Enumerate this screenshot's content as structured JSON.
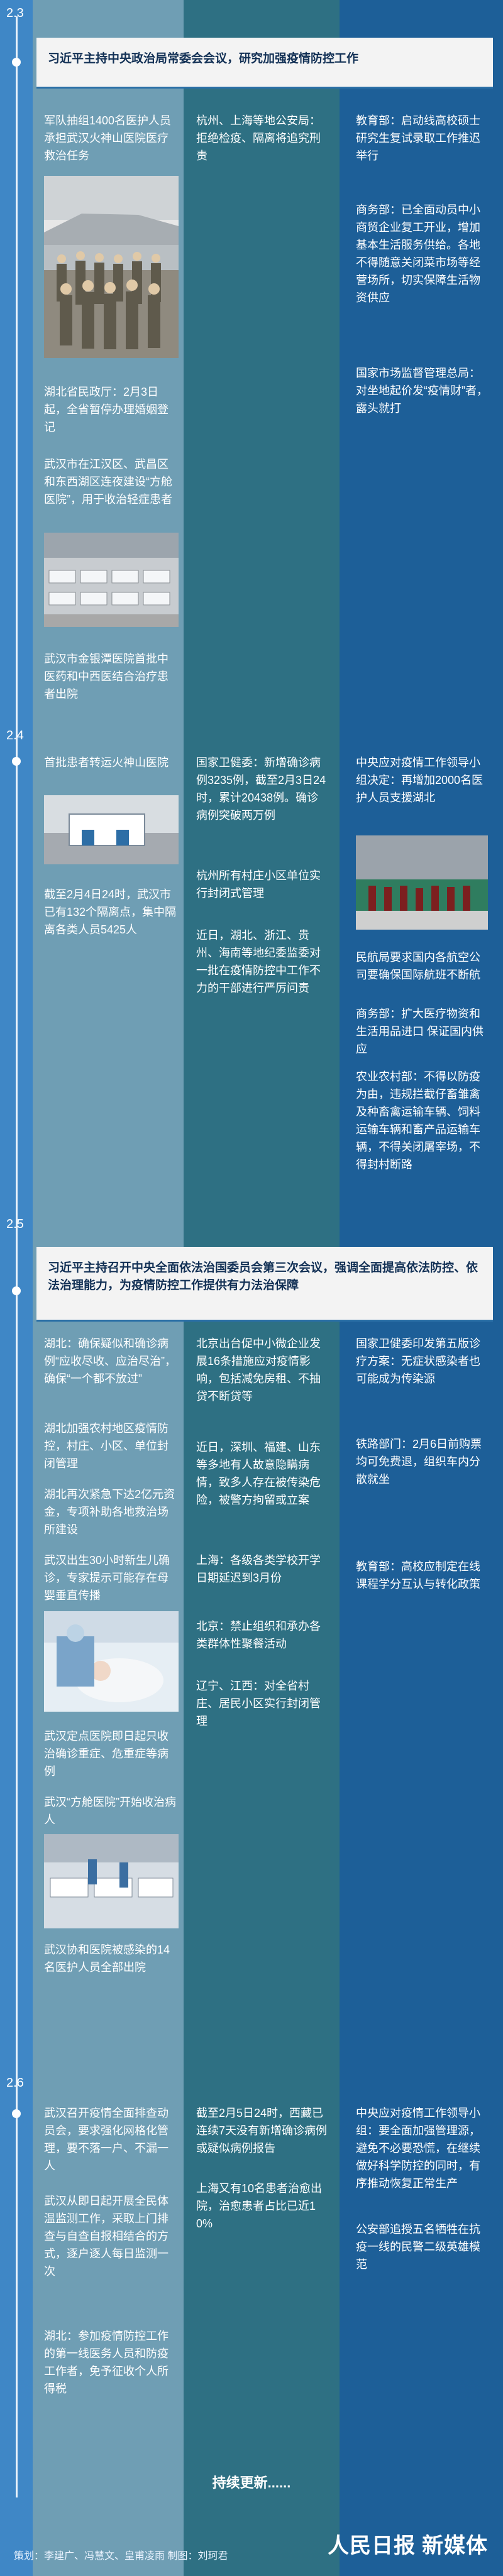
{
  "meta": {
    "colors": {
      "left_strip": "#3f87c6",
      "col1_bg": "#6f9eb4",
      "col2_bg": "#2e7083",
      "col3_bg": "#1d5f98",
      "banner_bg": "#f3f3f3",
      "banner_text": "#123055"
    }
  },
  "timeline": {
    "dates": [
      "2.3",
      "2.4",
      "2.5",
      "2.6"
    ]
  },
  "meetings": [
    {
      "text": "习近平主持中央政治局常委会会议，研究加强疫情防控工作"
    },
    {
      "text": "习近平主持召开中央全面依法治国委员会第三次会议，强调全面提高依法防控、依法治理能力，为疫情防控工作提供有力法治保障"
    }
  ],
  "sections": {
    "d23": {
      "col1": [
        "军队抽组1400名医护人员承担武汉火神山医院医疗救治任务",
        "湖北省民政厅：2月3日起，全省暂停办理婚姻登记",
        "武汉市在江汉区、武昌区和东西湖区连夜建设“方舱医院”，用于收治轻症患者",
        "武汉市金银潭医院首批中医药和中西医结合治疗患者出院"
      ],
      "col2": [
        "杭州、上海等地公安局：拒绝检疫、隔离将追究刑责"
      ],
      "col3": [
        "教育部：启动线高校硕士研究生复试录取工作推迟举行",
        "商务部：已全面动员中小商贸企业复工开业，增加基本生活服务供给。各地不得随意关闭菜市场等经营场所，切实保障生活物资供应",
        "国家市场监督管理总局：对坐地起价发“疫情财”者，露头就打"
      ]
    },
    "d24": {
      "col1": [
        "首批患者转运火神山医院",
        "截至2月4日24时，武汉市已有132个隔离点，集中隔离各类人员5425人"
      ],
      "col2": [
        "国家卫健委：新增确诊病例3235例，截至2月3日24时，累计20438例。确诊病例突破两万例",
        "杭州所有村庄小区单位实行封闭式管理",
        "近日，湖北、浙江、贵州、海南等地纪委监委对一批在疫情防控中工作不力的干部进行严厉问责"
      ],
      "col3": [
        "中央应对疫情工作领导小组决定：再增加2000名医护人员支援湖北",
        "民航局要求国内各航空公司要确保国际航班不断航",
        "商务部：扩大医疗物资和生活用品进口 保证国内供应",
        "农业农村部：不得以防疫为由，违规拦截仔畜雏禽及种畜禽运输车辆、饲料运输车辆和畜产品运输车辆，不得关闭屠宰场，不得封村断路"
      ]
    },
    "d25": {
      "col1": [
        "湖北：确保疑似和确诊病例“应收尽收、应治尽治”，确保“一个都不放过”",
        "湖北加强农村地区疫情防控，村庄、小区、单位封闭管理",
        "湖北再次紧急下达2亿元资金，专项补助各地救治场所建设",
        "武汉出生30小时新生儿确诊，专家提示可能存在母婴垂直传播",
        "武汉定点医院即日起只收治确诊重症、危重症等病例",
        "武汉“方舱医院”开始收治病人",
        "武汉协和医院被感染的14名医护人员全部出院"
      ],
      "col2": [
        "北京出台促中小微企业发展16条措施应对疫情影响，包括减免房租、不抽贷不断贷等",
        "近日，深圳、福建、山东等多地有人故意隐瞒病情，致多人存在被传染危险，被警方拘留或立案",
        "上海：各级各类学校开学日期延迟到3月份",
        "北京：禁止组织和承办各类群体性聚餐活动",
        "辽宁、江西：对全省村庄、居民小区实行封闭管理"
      ],
      "col3": [
        "国家卫健委印发第五版诊疗方案：无症状感染者也可能成为传染源",
        "铁路部门：2月6日前购票均可免费退，组织车内分散就坐",
        "教育部：高校应制定在线课程学分互认与转化政策"
      ]
    },
    "d26": {
      "col1": [
        "武汉召开疫情全面排查动员会，要求强化网格化管理，要不落一户、不漏一人",
        "武汉从即日起开展全民体温监测工作，采取上门排查与自查自报相结合的方式，逐户逐人每日监测一次",
        "湖北：参加疫情防控工作的第一线医务人员和防疫工作者，免予征收个人所得税"
      ],
      "col2": [
        "截至2月5日24时，西藏已连续7天没有新增确诊病例或疑似病例报告",
        "上海又有10名患者治愈出院，治愈患者占比已近10%"
      ],
      "col3": [
        "中央应对疫情工作领导小组：要全面加强管理源，避免不必要恐慌，在继续做好科学防控的同时，有序推动恢复正常生产",
        "公安部追授五名牺牲在抗疫一线的民警二级英雄模范"
      ]
    }
  },
  "images": {
    "troops_alt": "军队医护人员列队",
    "shelter_alt": "方舱医院病床",
    "train_alt": "医护人员列车旁",
    "baby_alt": "新生儿护理",
    "cabin_alt": "方舱医院收治"
  },
  "footer": {
    "continue": "持续更新......",
    "credits": "策划：李建广、冯慧文、皇甫凌雨  制图：刘珂君",
    "brand_name": "人民日报",
    "brand_sub": "新媒体"
  }
}
